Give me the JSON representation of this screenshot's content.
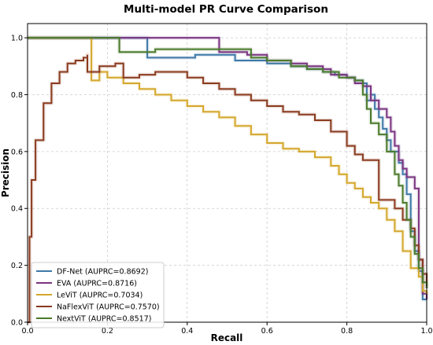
{
  "chart_data": {
    "type": "line",
    "title": "Multi-model PR Curve Comparison",
    "xlabel": "Recall",
    "ylabel": "Precision",
    "xlim": [
      0,
      1
    ],
    "ylim": [
      0,
      1.05
    ],
    "xticks": [
      "0.0",
      "0.2",
      "0.4",
      "0.6",
      "0.8",
      "1.0"
    ],
    "yticks": [
      "0.0",
      "0.2",
      "0.4",
      "0.6",
      "0.8",
      "1.0"
    ],
    "grid": true,
    "legend_position": "lower-left",
    "series": [
      {
        "name": "DF-Net (AUPRC=0.8692)",
        "color": "#3e78a8",
        "points": [
          [
            0,
            1.0
          ],
          [
            0.3,
            1.0
          ],
          [
            0.3,
            0.93
          ],
          [
            0.42,
            0.93
          ],
          [
            0.42,
            0.94
          ],
          [
            0.52,
            0.94
          ],
          [
            0.52,
            0.92
          ],
          [
            0.6,
            0.91
          ],
          [
            0.66,
            0.9
          ],
          [
            0.7,
            0.89
          ],
          [
            0.74,
            0.88
          ],
          [
            0.77,
            0.87
          ],
          [
            0.8,
            0.86
          ],
          [
            0.82,
            0.85
          ],
          [
            0.84,
            0.84
          ],
          [
            0.85,
            0.78
          ],
          [
            0.86,
            0.8
          ],
          [
            0.87,
            0.75
          ],
          [
            0.88,
            0.72
          ],
          [
            0.89,
            0.68
          ],
          [
            0.9,
            0.64
          ],
          [
            0.91,
            0.6
          ],
          [
            0.93,
            0.56
          ],
          [
            0.94,
            0.52
          ],
          [
            0.95,
            0.45
          ],
          [
            0.96,
            0.4
          ],
          [
            0.96,
            0.32
          ],
          [
            0.97,
            0.25
          ],
          [
            0.98,
            0.18
          ],
          [
            0.99,
            0.08
          ],
          [
            1.0,
            0.08
          ]
        ]
      },
      {
        "name": "EVA (AUPRC=0.8716)",
        "color": "#7a3380",
        "points": [
          [
            0,
            1.0
          ],
          [
            0.48,
            1.0
          ],
          [
            0.48,
            0.95
          ],
          [
            0.55,
            0.94
          ],
          [
            0.6,
            0.92
          ],
          [
            0.66,
            0.91
          ],
          [
            0.7,
            0.9
          ],
          [
            0.74,
            0.89
          ],
          [
            0.76,
            0.87
          ],
          [
            0.8,
            0.86
          ],
          [
            0.82,
            0.84
          ],
          [
            0.84,
            0.83
          ],
          [
            0.86,
            0.82
          ],
          [
            0.86,
            0.78
          ],
          [
            0.88,
            0.75
          ],
          [
            0.9,
            0.72
          ],
          [
            0.91,
            0.67
          ],
          [
            0.92,
            0.62
          ],
          [
            0.93,
            0.57
          ],
          [
            0.94,
            0.54
          ],
          [
            0.95,
            0.51
          ],
          [
            0.96,
            0.51
          ],
          [
            0.97,
            0.47
          ],
          [
            0.98,
            0.36
          ],
          [
            0.98,
            0.22
          ],
          [
            0.99,
            0.1
          ],
          [
            1.0,
            0.08
          ]
        ]
      },
      {
        "name": "LeViT (AUPRC=0.7034)",
        "color": "#d4a72c",
        "points": [
          [
            0,
            1.0
          ],
          [
            0.16,
            1.0
          ],
          [
            0.16,
            0.85
          ],
          [
            0.18,
            0.88
          ],
          [
            0.2,
            0.86
          ],
          [
            0.24,
            0.84
          ],
          [
            0.28,
            0.82
          ],
          [
            0.32,
            0.8
          ],
          [
            0.36,
            0.78
          ],
          [
            0.4,
            0.76
          ],
          [
            0.44,
            0.74
          ],
          [
            0.48,
            0.72
          ],
          [
            0.52,
            0.69
          ],
          [
            0.56,
            0.66
          ],
          [
            0.6,
            0.63
          ],
          [
            0.64,
            0.61
          ],
          [
            0.68,
            0.6
          ],
          [
            0.72,
            0.58
          ],
          [
            0.76,
            0.55
          ],
          [
            0.78,
            0.52
          ],
          [
            0.8,
            0.49
          ],
          [
            0.82,
            0.47
          ],
          [
            0.84,
            0.44
          ],
          [
            0.86,
            0.42
          ],
          [
            0.88,
            0.4
          ],
          [
            0.9,
            0.36
          ],
          [
            0.92,
            0.32
          ],
          [
            0.94,
            0.25
          ],
          [
            0.96,
            0.19
          ],
          [
            0.98,
            0.16
          ],
          [
            0.99,
            0.11
          ],
          [
            1.0,
            0.1
          ]
        ]
      },
      {
        "name": "NaFlexViT (AUPRC=0.7570)",
        "color": "#8a3a1e",
        "points": [
          [
            0,
            0.0
          ],
          [
            0.005,
            0.3
          ],
          [
            0.01,
            0.5
          ],
          [
            0.02,
            0.64
          ],
          [
            0.04,
            0.77
          ],
          [
            0.06,
            0.84
          ],
          [
            0.08,
            0.88
          ],
          [
            0.1,
            0.91
          ],
          [
            0.12,
            0.92
          ],
          [
            0.14,
            0.93
          ],
          [
            0.15,
            0.94
          ],
          [
            0.15,
            0.88
          ],
          [
            0.18,
            0.9
          ],
          [
            0.22,
            0.91
          ],
          [
            0.24,
            0.86
          ],
          [
            0.28,
            0.87
          ],
          [
            0.32,
            0.88
          ],
          [
            0.36,
            0.88
          ],
          [
            0.4,
            0.86
          ],
          [
            0.44,
            0.84
          ],
          [
            0.48,
            0.82
          ],
          [
            0.52,
            0.8
          ],
          [
            0.56,
            0.78
          ],
          [
            0.6,
            0.76
          ],
          [
            0.64,
            0.74
          ],
          [
            0.68,
            0.73
          ],
          [
            0.72,
            0.71
          ],
          [
            0.76,
            0.67
          ],
          [
            0.8,
            0.62
          ],
          [
            0.82,
            0.59
          ],
          [
            0.84,
            0.57
          ],
          [
            0.86,
            0.57
          ],
          [
            0.88,
            0.56
          ],
          [
            0.88,
            0.43
          ],
          [
            0.9,
            0.43
          ],
          [
            0.92,
            0.4
          ],
          [
            0.94,
            0.36
          ],
          [
            0.96,
            0.33
          ],
          [
            0.97,
            0.27
          ],
          [
            0.98,
            0.22
          ],
          [
            0.99,
            0.17
          ],
          [
            1.0,
            0.12
          ]
        ]
      },
      {
        "name": "NextViT (AUPRC=0.8517)",
        "color": "#4a7a2b",
        "points": [
          [
            0,
            1.0
          ],
          [
            0.23,
            1.0
          ],
          [
            0.23,
            0.95
          ],
          [
            0.28,
            0.95
          ],
          [
            0.32,
            0.96
          ],
          [
            0.4,
            0.96
          ],
          [
            0.48,
            0.96
          ],
          [
            0.54,
            0.96
          ],
          [
            0.56,
            0.93
          ],
          [
            0.6,
            0.92
          ],
          [
            0.66,
            0.9
          ],
          [
            0.7,
            0.89
          ],
          [
            0.74,
            0.88
          ],
          [
            0.78,
            0.86
          ],
          [
            0.82,
            0.85
          ],
          [
            0.84,
            0.84
          ],
          [
            0.84,
            0.8
          ],
          [
            0.85,
            0.75
          ],
          [
            0.86,
            0.7
          ],
          [
            0.88,
            0.66
          ],
          [
            0.9,
            0.6
          ],
          [
            0.92,
            0.52
          ],
          [
            0.93,
            0.48
          ],
          [
            0.94,
            0.42
          ],
          [
            0.95,
            0.36
          ],
          [
            0.96,
            0.3
          ],
          [
            0.97,
            0.24
          ],
          [
            0.98,
            0.19
          ],
          [
            0.99,
            0.14
          ],
          [
            1.0,
            0.12
          ]
        ]
      }
    ]
  }
}
